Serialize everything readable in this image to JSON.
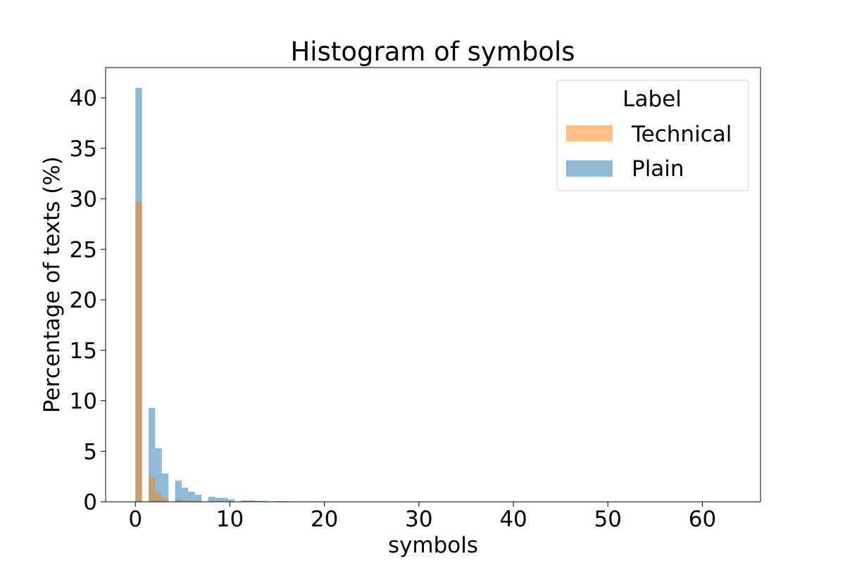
{
  "chart_data": {
    "type": "bar",
    "title": "Histogram of symbols",
    "xlabel": "symbols",
    "ylabel": "Percentage of texts (%)",
    "xlim": [
      -3.15,
      66.15
    ],
    "ylim": [
      0,
      43
    ],
    "x_ticks": [
      0,
      10,
      20,
      30,
      40,
      50,
      60
    ],
    "y_ticks": [
      0,
      5,
      10,
      15,
      20,
      25,
      30,
      35,
      40
    ],
    "bin_width": 0.7,
    "legend": {
      "title": "Label",
      "placement": "top-right",
      "entries": [
        "Technical",
        "Plain"
      ]
    },
    "grid": false,
    "colors": {
      "Technical": "#ff7f0e",
      "Plain": "#1f77b4"
    },
    "bar_alpha": 0.5,
    "series": [
      {
        "name": "Plain",
        "bins": [
          {
            "x0": 0.0,
            "value": 41.0
          },
          {
            "x0": 0.7,
            "value": 0.0
          },
          {
            "x0": 1.4,
            "value": 9.3
          },
          {
            "x0": 2.1,
            "value": 5.3
          },
          {
            "x0": 2.8,
            "value": 2.8
          },
          {
            "x0": 3.5,
            "value": 0.0
          },
          {
            "x0": 4.2,
            "value": 2.1
          },
          {
            "x0": 4.9,
            "value": 1.4
          },
          {
            "x0": 5.6,
            "value": 1.0
          },
          {
            "x0": 6.3,
            "value": 0.7
          },
          {
            "x0": 7.0,
            "value": 0.0
          },
          {
            "x0": 7.7,
            "value": 0.5
          },
          {
            "x0": 8.4,
            "value": 0.4
          },
          {
            "x0": 9.1,
            "value": 0.4
          },
          {
            "x0": 9.8,
            "value": 0.25
          },
          {
            "x0": 10.5,
            "value": 0.0
          },
          {
            "x0": 11.2,
            "value": 0.15
          },
          {
            "x0": 11.9,
            "value": 0.15
          },
          {
            "x0": 12.6,
            "value": 0.1
          },
          {
            "x0": 13.3,
            "value": 0.08
          },
          {
            "x0": 14.0,
            "value": 0.0
          },
          {
            "x0": 14.7,
            "value": 0.06
          },
          {
            "x0": 15.4,
            "value": 0.06
          },
          {
            "x0": 16.1,
            "value": 0.05
          },
          {
            "x0": 16.8,
            "value": 0.04
          },
          {
            "x0": 17.5,
            "value": 0.0
          },
          {
            "x0": 18.2,
            "value": 0.04
          },
          {
            "x0": 18.9,
            "value": 0.04
          },
          {
            "x0": 19.6,
            "value": 0.03
          },
          {
            "x0": 20.3,
            "value": 0.03
          }
        ]
      },
      {
        "name": "Technical",
        "bins": [
          {
            "x0": 0.0,
            "value": 29.7
          },
          {
            "x0": 0.7,
            "value": 0.0
          },
          {
            "x0": 1.4,
            "value": 2.5
          },
          {
            "x0": 2.1,
            "value": 0.9
          },
          {
            "x0": 2.8,
            "value": 0.35
          },
          {
            "x0": 3.5,
            "value": 0.0
          },
          {
            "x0": 4.2,
            "value": 0.25
          },
          {
            "x0": 4.9,
            "value": 0.12
          },
          {
            "x0": 5.6,
            "value": 0.08
          },
          {
            "x0": 6.3,
            "value": 0.05
          }
        ]
      }
    ]
  }
}
